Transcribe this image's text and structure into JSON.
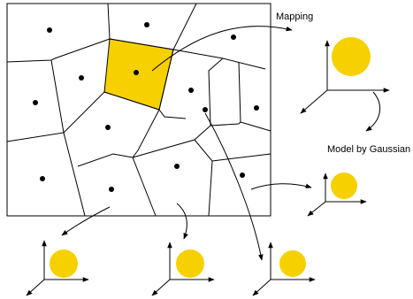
{
  "labels": {
    "mapping": "Mapping",
    "model_by_gaussian": "Model by Gaussian"
  },
  "colors": {
    "highlight_cell": "#F7D000",
    "gaussian_disc": "#F7D000",
    "lines": "#000000",
    "background": "#FFFFFF"
  },
  "diagram": {
    "voronoi_cell_count": 15,
    "highlighted_cell_count": 1,
    "gaussian_model_count": 5
  }
}
